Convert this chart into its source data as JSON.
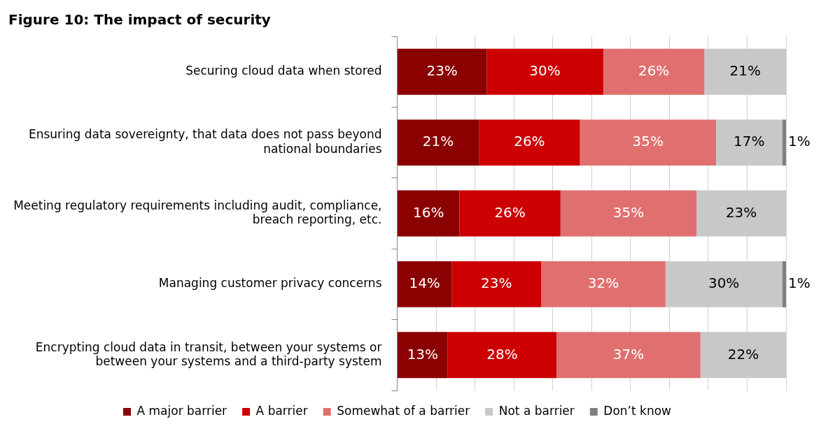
{
  "chart_data": {
    "type": "bar",
    "orientation": "horizontal",
    "stacked": true,
    "title": "Figure 10: The impact of security",
    "categories": [
      "Securing cloud data when stored",
      "Ensuring data sovereignty, that data does not pass beyond national boundaries",
      "Meeting regulatory requirements including audit, compliance, breach reporting, etc.",
      "Managing customer privacy concerns",
      "Encrypting cloud data in transit, between your systems or between your systems and a third-party system"
    ],
    "series": [
      {
        "name": "A major barrier",
        "color": "#8b0000",
        "values": [
          23,
          21,
          16,
          14,
          13
        ],
        "value_labels": [
          "23%",
          "21%",
          "16%",
          "14%",
          "13%"
        ]
      },
      {
        "name": "A barrier",
        "color": "#cc0000",
        "values": [
          30,
          26,
          26,
          23,
          28
        ],
        "value_labels": [
          "30%",
          "26%",
          "26%",
          "23%",
          "28%"
        ]
      },
      {
        "name": "Somewhat of a barrier",
        "color": "#e07070",
        "values": [
          26,
          35,
          35,
          32,
          37
        ],
        "value_labels": [
          "26%",
          "35%",
          "35%",
          "32%",
          "37%"
        ]
      },
      {
        "name": "Not a barrier",
        "color": "#c8c8c8",
        "values": [
          21,
          17,
          23,
          30,
          22
        ],
        "value_labels": [
          "21%",
          "17%",
          "23%",
          "30%",
          "22%"
        ]
      },
      {
        "name": "Don’t know",
        "color": "#808080",
        "values": [
          null,
          1,
          null,
          1,
          null
        ],
        "value_labels": [
          null,
          "1%",
          null,
          "1%",
          null
        ]
      }
    ],
    "tick_labels": "y",
    "grid": "x",
    "legend": "bottom"
  }
}
